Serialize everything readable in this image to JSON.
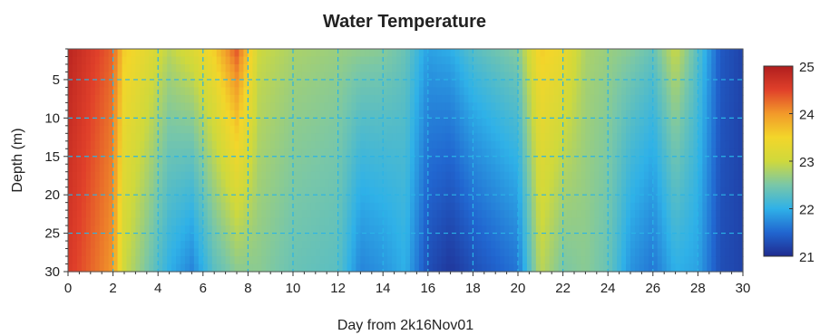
{
  "chart_data": {
    "type": "heatmap",
    "title": "Water Temperature",
    "xlabel": "Day from 2k16Nov01",
    "ylabel": "Depth (m)",
    "xlim": [
      0,
      30
    ],
    "ylim": [
      1,
      30
    ],
    "y_inverted": true,
    "x_ticks": [
      0,
      2,
      4,
      6,
      8,
      10,
      12,
      14,
      16,
      18,
      20,
      22,
      24,
      26,
      28,
      30
    ],
    "y_ticks": [
      5,
      10,
      15,
      20,
      25,
      30
    ],
    "grid": true,
    "colorbar": {
      "min": 21,
      "max": 25,
      "ticks": [
        21,
        22,
        23,
        24,
        25
      ],
      "colors": [
        "#1f2b8f",
        "#2166d0",
        "#2fb1e8",
        "#79c7a8",
        "#cfd93c",
        "#f3d62a",
        "#f29a2a",
        "#e0402a",
        "#b01e1e"
      ]
    },
    "surface_profile": [
      [
        0,
        24.9
      ],
      [
        1,
        24.6
      ],
      [
        2,
        24.3
      ],
      [
        2.5,
        23.6
      ],
      [
        3.5,
        23.3
      ],
      [
        4.5,
        22.9
      ],
      [
        5.5,
        23.2
      ],
      [
        6.5,
        23.6
      ],
      [
        7.5,
        24.4
      ],
      [
        8.5,
        23.0
      ],
      [
        10,
        22.8
      ],
      [
        12,
        22.7
      ],
      [
        14,
        22.6
      ],
      [
        15,
        22.4
      ],
      [
        16,
        21.9
      ],
      [
        17,
        22.0
      ],
      [
        18,
        22.3
      ],
      [
        20,
        22.6
      ],
      [
        21,
        23.6
      ],
      [
        22,
        23.4
      ],
      [
        23,
        22.8
      ],
      [
        24,
        22.7
      ],
      [
        25,
        22.6
      ],
      [
        26,
        22.4
      ],
      [
        27,
        23.0
      ],
      [
        28,
        22.3
      ],
      [
        29,
        21.4
      ],
      [
        30,
        21.2
      ]
    ],
    "bottom_profile": [
      [
        0,
        24.6
      ],
      [
        1,
        24.3
      ],
      [
        2,
        24.0
      ],
      [
        2.5,
        23.0
      ],
      [
        3.5,
        22.5
      ],
      [
        4.5,
        22.0
      ],
      [
        5.5,
        21.7
      ],
      [
        6.5,
        22.3
      ],
      [
        7.5,
        22.6
      ],
      [
        8.5,
        22.6
      ],
      [
        10,
        22.4
      ],
      [
        12,
        22.3
      ],
      [
        13,
        21.7
      ],
      [
        14,
        21.8
      ],
      [
        15,
        22.0
      ],
      [
        16,
        21.3
      ],
      [
        17,
        21.1
      ],
      [
        18,
        21.3
      ],
      [
        20,
        21.6
      ],
      [
        21,
        22.9
      ],
      [
        22,
        22.5
      ],
      [
        23,
        22.6
      ],
      [
        24,
        22.4
      ],
      [
        25,
        21.8
      ],
      [
        26,
        21.6
      ],
      [
        27,
        22.0
      ],
      [
        28,
        21.9
      ],
      [
        29,
        21.3
      ],
      [
        30,
        21.2
      ]
    ]
  }
}
